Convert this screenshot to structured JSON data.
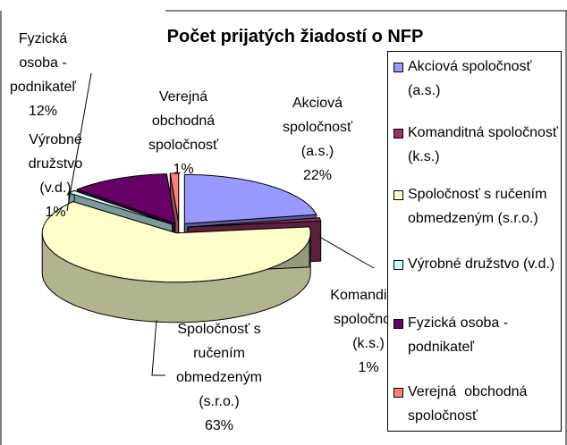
{
  "chart_data": {
    "type": "pie",
    "title": "Počet prijatých žiadostí o NFP",
    "categories": [
      "Akciová spoločnosť (a.s.)",
      "Komanditná spoločnosť (k.s.)",
      "Spoločnosť s ručením obmedzeným (s.r.o.)",
      "Výrobné družstvo (v.d.)",
      "Fyzická osoba - podnikateľ",
      "Verejná  obchodná spoločnosť"
    ],
    "values": [
      22,
      1,
      63,
      1,
      12,
      1
    ],
    "value_labels": [
      "22%",
      "1%",
      "63%",
      "1%",
      "12%",
      "1%"
    ],
    "colors": [
      "#9999ff",
      "#993366",
      "#ffffcc",
      "#ccffff",
      "#660066",
      "#ff8080"
    ],
    "legend": "right"
  }
}
